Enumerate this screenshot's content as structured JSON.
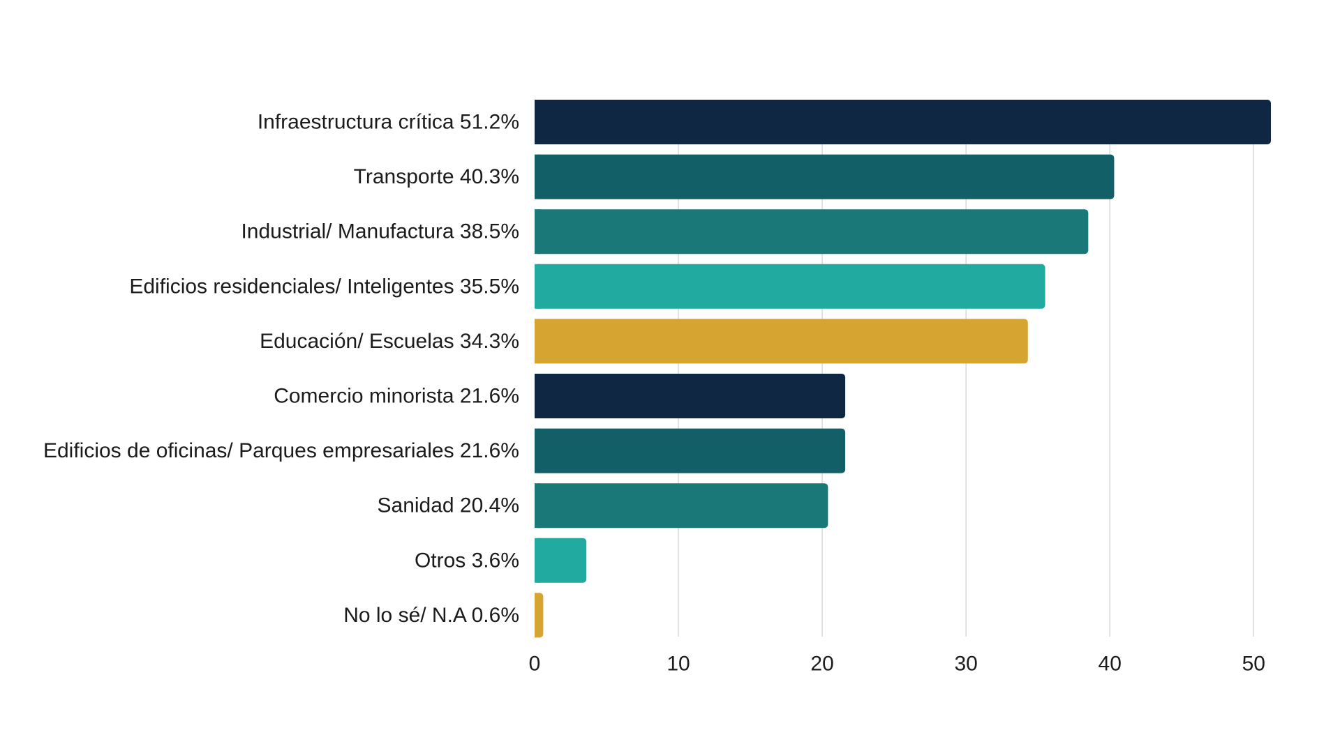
{
  "chart_data": {
    "type": "bar",
    "orientation": "horizontal",
    "categories": [
      "Infraestructura crítica 51.2%",
      "Transporte 40.3%",
      "Industrial/ Manufactura 38.5%",
      "Edificios residenciales/ Inteligentes 35.5%",
      "Educación/ Escuelas 34.3%",
      "Comercio minorista 21.6%",
      "Edificios de oficinas/ Parques empresariales 21.6%",
      "Sanidad 20.4%",
      "Otros 3.6%",
      "No lo sé/ N.A 0.6%"
    ],
    "values": [
      51.2,
      40.3,
      38.5,
      35.5,
      34.3,
      21.6,
      21.6,
      20.4,
      3.6,
      0.6
    ],
    "colors": [
      "#0f2742",
      "#135f68",
      "#1b7878",
      "#20aaa0",
      "#d6a531",
      "#0f2742",
      "#135f68",
      "#1b7878",
      "#20aaa0",
      "#d6a531"
    ],
    "xlim": [
      0,
      51.2
    ],
    "xticks": [
      0,
      10,
      20,
      30,
      40,
      50
    ],
    "xtick_labels": [
      "0",
      "10",
      "20",
      "30",
      "40",
      "50"
    ],
    "grid": "vertical",
    "title": "",
    "xlabel": "",
    "ylabel": ""
  }
}
